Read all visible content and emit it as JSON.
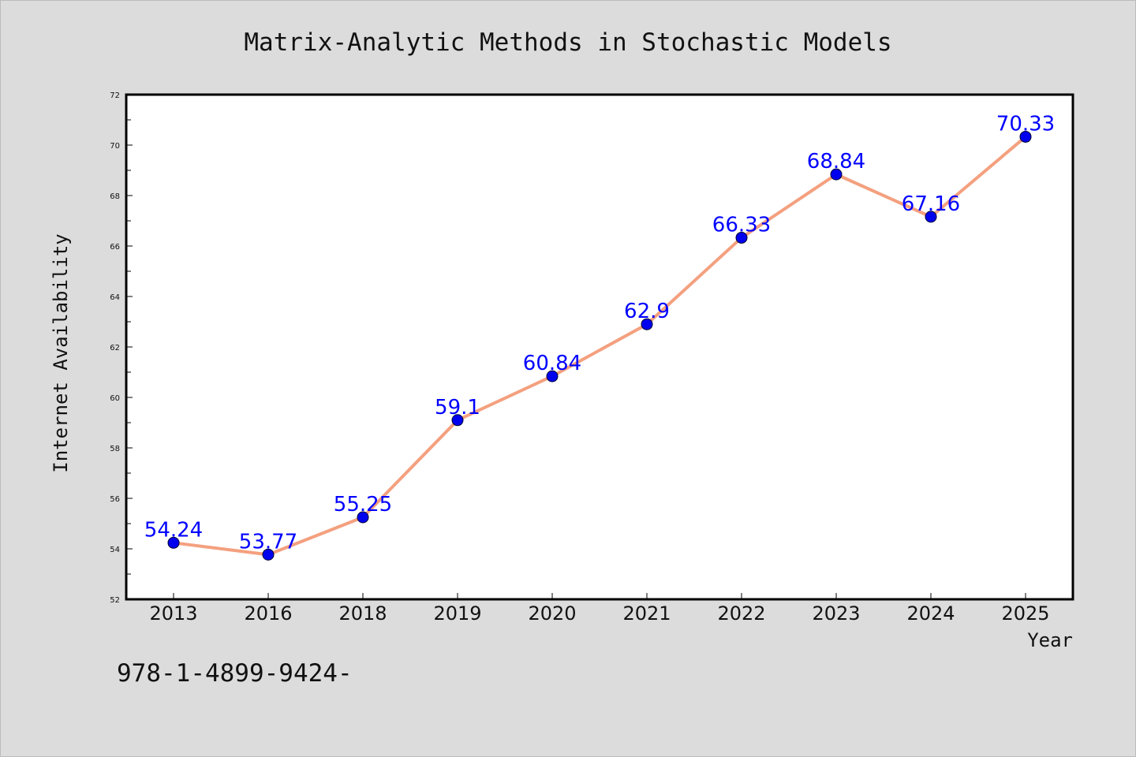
{
  "colors": {
    "background": "#dcdcdc",
    "plot_background": "#ffffff",
    "line": "#f4a07f",
    "marker": "#0000ee",
    "data_label": "#0000ff"
  },
  "footnote": "978-1-4899-9424-",
  "chart_data": {
    "type": "line",
    "title": "Matrix-Analytic Methods in Stochastic Models",
    "xlabel": "Year",
    "ylabel": "Internet Availability",
    "categories": [
      "2013",
      "2016",
      "2018",
      "2019",
      "2020",
      "2021",
      "2022",
      "2023",
      "2024",
      "2025"
    ],
    "series": [
      {
        "values": [
          54.24,
          53.77,
          55.25,
          59.1,
          60.84,
          62.9,
          66.33,
          68.84,
          67.16,
          70.33
        ],
        "labels": [
          "54.24",
          "53.77",
          "55.25",
          "59.1",
          "60.84",
          "62.9",
          "66.33",
          "68.84",
          "67.16",
          "70.33"
        ]
      }
    ],
    "ylim": [
      52,
      72
    ],
    "yticks": [
      "52",
      "54",
      "56",
      "58",
      "60",
      "62",
      "64",
      "66",
      "68",
      "70",
      "72"
    ],
    "grid": false,
    "legend": "none"
  }
}
